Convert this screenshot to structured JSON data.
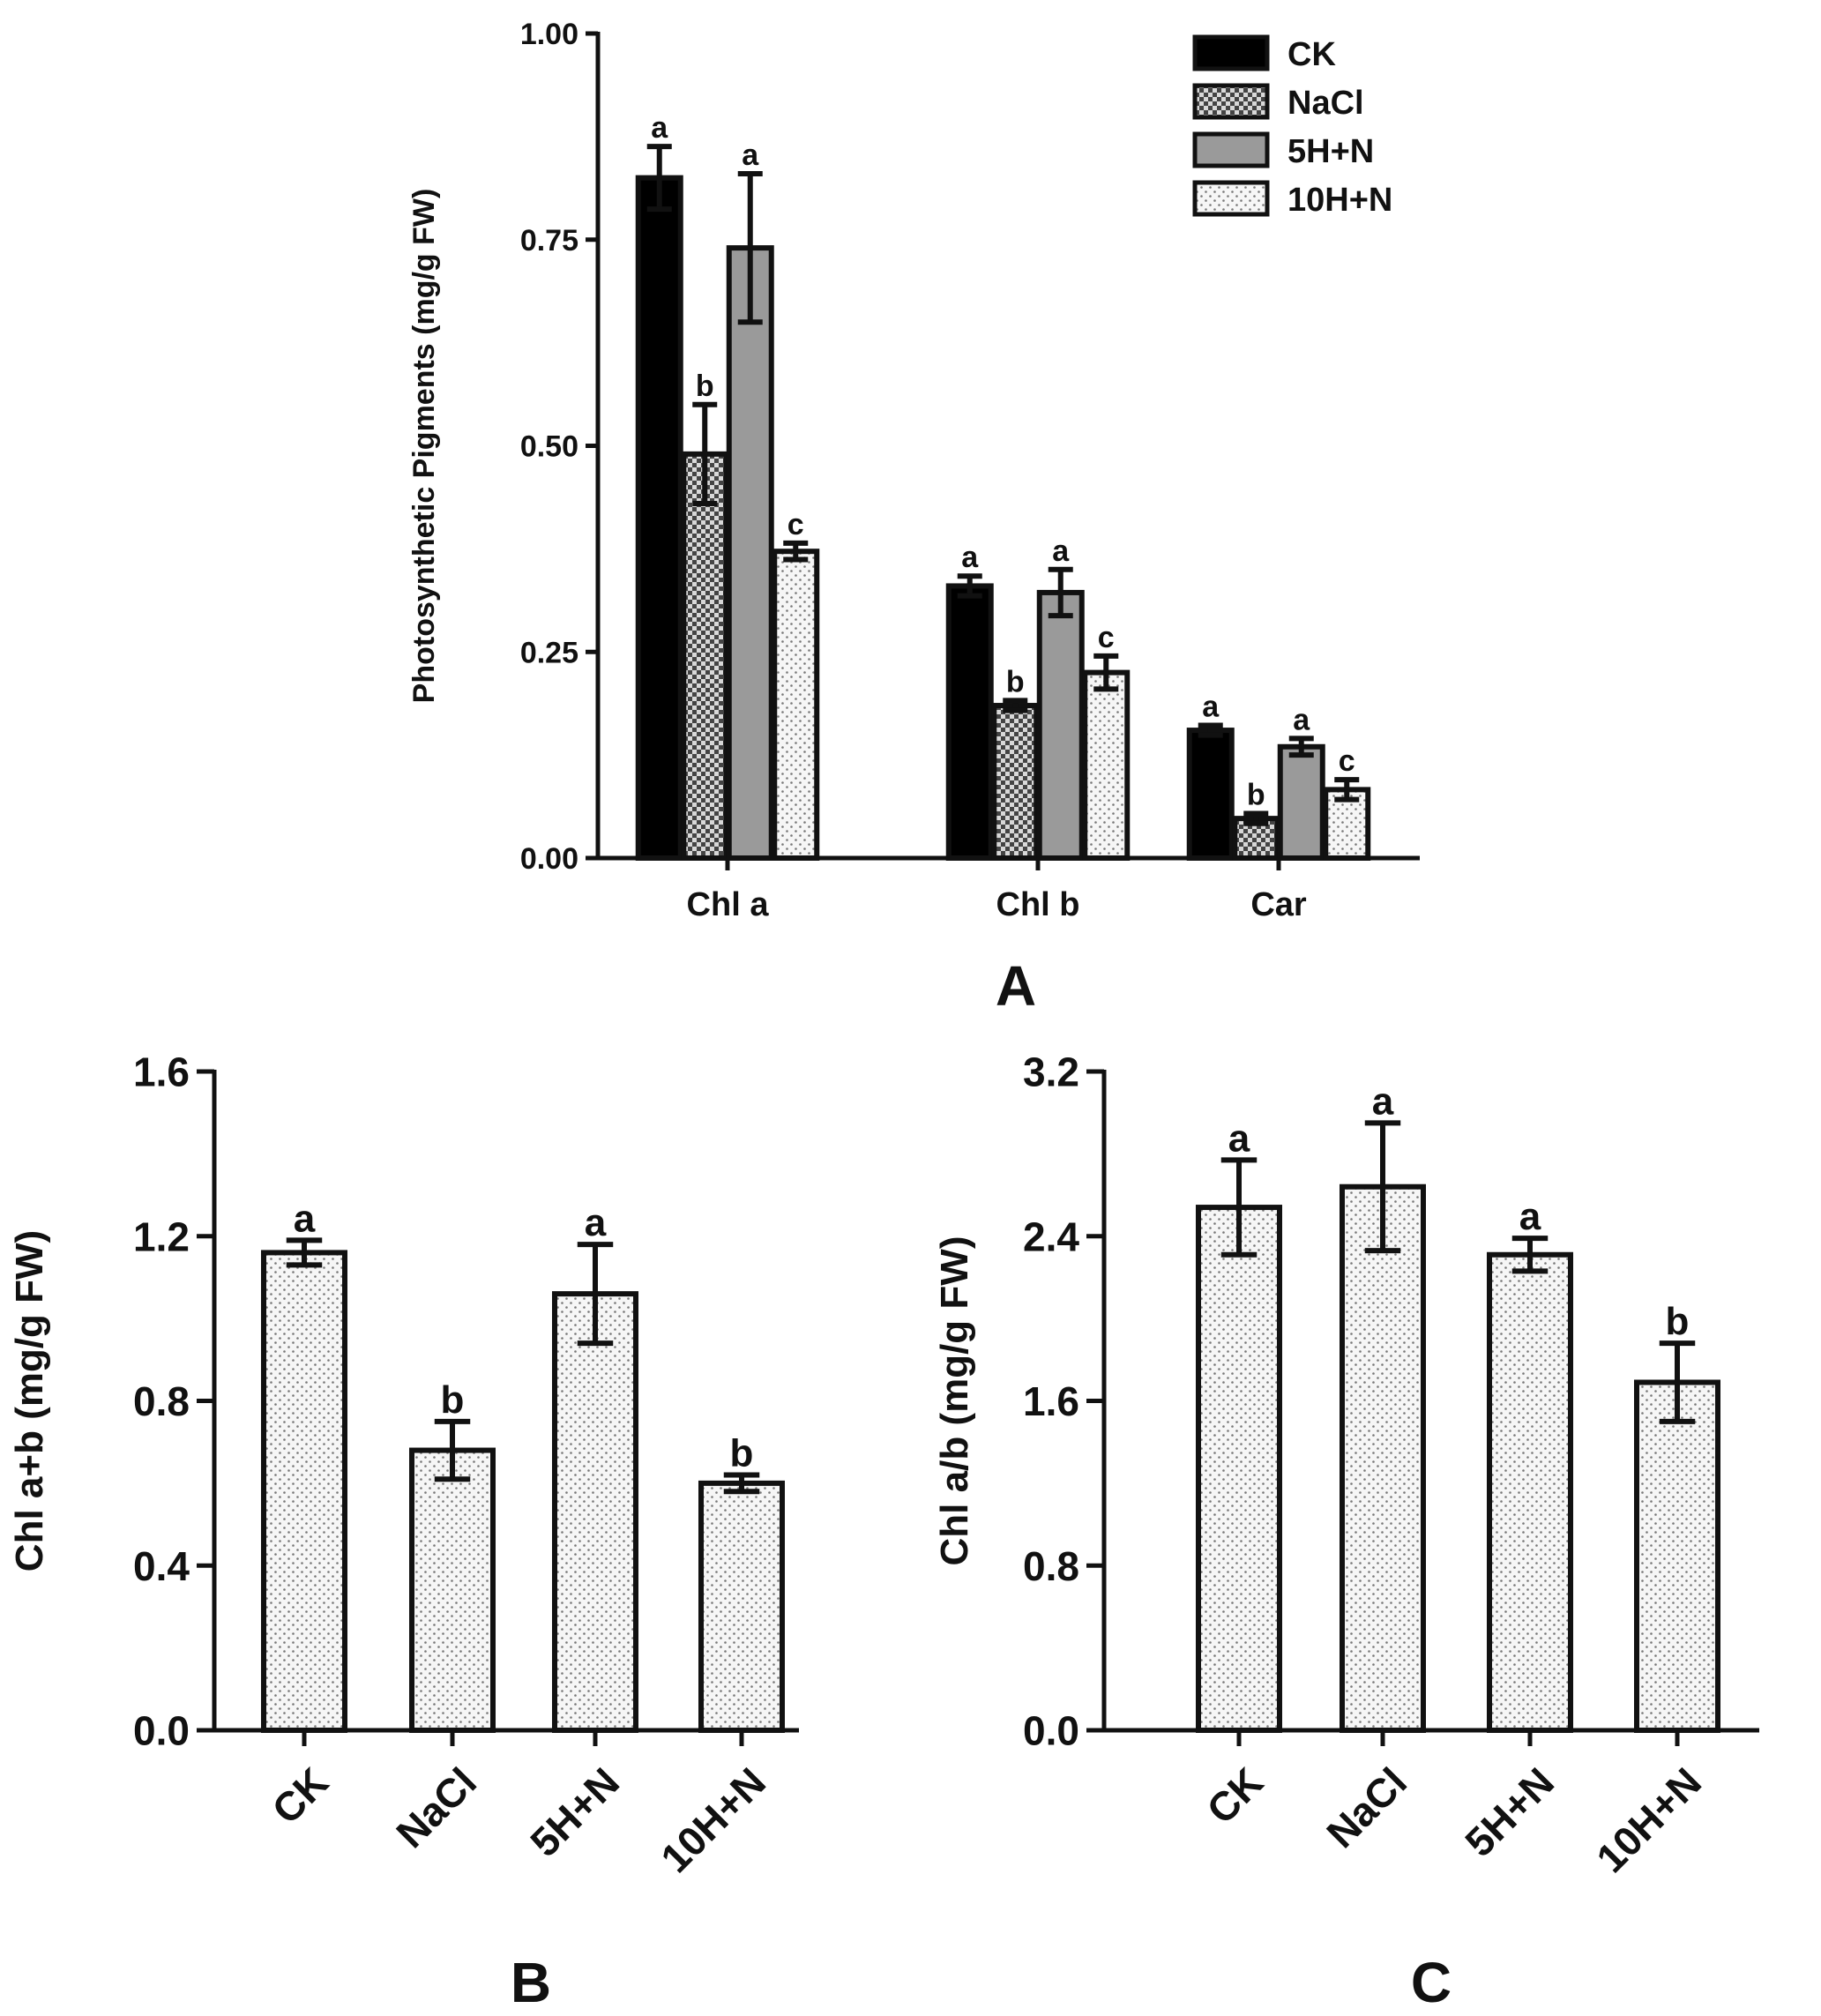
{
  "colors": {
    "ink": "#111111",
    "ck": "#000000",
    "nacl_base": "#ffffff",
    "fiveH": "#9a9a9a",
    "dot_bg": "#f6f6f6"
  },
  "chart_data": [
    {
      "panel": "A",
      "type": "bar",
      "panel_label": "A",
      "ylabel": "Photosynthetic Pigments (mg/g FW)",
      "ylim": [
        0,
        1.0
      ],
      "yticks": [
        "0.00",
        "0.25",
        "0.50",
        "0.75",
        "1.00"
      ],
      "ytick_values": [
        0,
        0.25,
        0.5,
        0.75,
        1.0
      ],
      "categories": [
        "Chl a",
        "Chl b",
        "Car"
      ],
      "legend_position": "top-right",
      "series": [
        {
          "name": "CK",
          "pattern": "solid-black",
          "values": [
            0.825,
            0.33,
            0.155
          ],
          "errors": [
            0.038,
            0.012,
            0.006
          ],
          "letters": [
            "a",
            "a",
            "a"
          ]
        },
        {
          "name": "NaCl",
          "pattern": "crosshatch",
          "values": [
            0.49,
            0.185,
            0.048
          ],
          "errors": [
            0.06,
            0.006,
            0.006
          ],
          "letters": [
            "b",
            "b",
            "b"
          ]
        },
        {
          "name": "5H+N",
          "pattern": "solid-gray",
          "values": [
            0.74,
            0.322,
            0.135
          ],
          "errors": [
            0.09,
            0.028,
            0.01
          ],
          "letters": [
            "a",
            "a",
            "a"
          ]
        },
        {
          "name": "10H+N",
          "pattern": "dotted",
          "values": [
            0.372,
            0.225,
            0.083
          ],
          "errors": [
            0.01,
            0.02,
            0.012
          ],
          "letters": [
            "c",
            "c",
            "c"
          ]
        }
      ]
    },
    {
      "panel": "B",
      "type": "bar",
      "panel_label": "B",
      "ylabel": "Chl a+b (mg/g FW)",
      "ylim": [
        0,
        1.6
      ],
      "yticks": [
        "0.0",
        "0.4",
        "0.8",
        "1.2",
        "1.6"
      ],
      "ytick_values": [
        0,
        0.4,
        0.8,
        1.2,
        1.6
      ],
      "categories": [
        "CK",
        "NaCl",
        "5H+N",
        "10H+N"
      ],
      "values": [
        1.16,
        0.68,
        1.06,
        0.6
      ],
      "errors": [
        0.03,
        0.07,
        0.12,
        0.02
      ],
      "letters": [
        "a",
        "b",
        "a",
        "b"
      ]
    },
    {
      "panel": "C",
      "type": "bar",
      "panel_label": "C",
      "ylabel": "Chl a/b (mg/g FW)",
      "ylim": [
        0,
        3.2
      ],
      "yticks": [
        "0.0",
        "0.8",
        "1.6",
        "2.4",
        "3.2"
      ],
      "ytick_values": [
        0,
        0.8,
        1.6,
        2.4,
        3.2
      ],
      "categories": [
        "CK",
        "NaCl",
        "5H+N",
        "10H+N"
      ],
      "values": [
        2.54,
        2.64,
        2.31,
        1.69
      ],
      "errors": [
        0.23,
        0.31,
        0.08,
        0.19
      ],
      "letters": [
        "a",
        "a",
        "a",
        "b"
      ]
    }
  ]
}
